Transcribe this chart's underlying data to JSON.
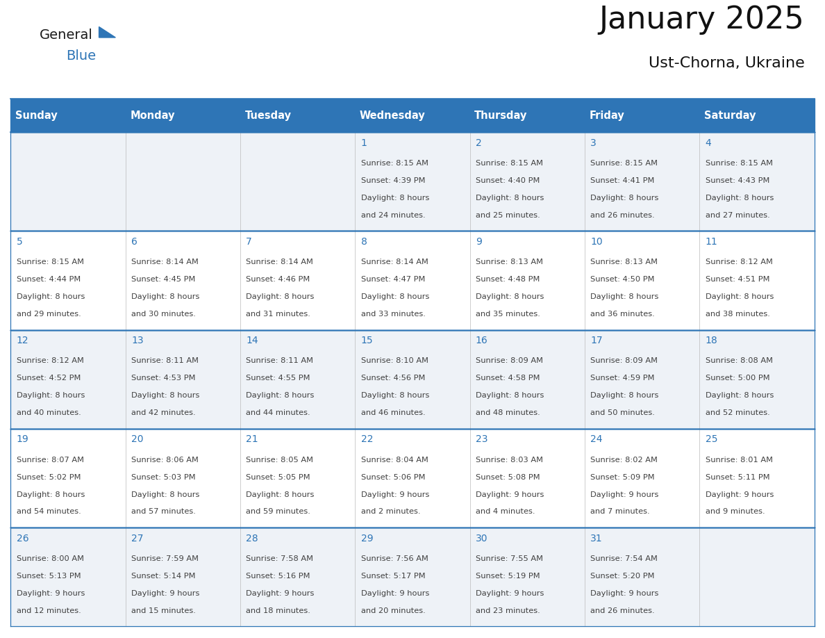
{
  "title": "January 2025",
  "subtitle": "Ust-Chorna, Ukraine",
  "header_bg_color": "#2E75B6",
  "header_text_color": "#FFFFFF",
  "row_bg_odd": "#EEF2F7",
  "row_bg_even": "#FFFFFF",
  "border_color": "#2E75B6",
  "text_color": "#404040",
  "day_num_color": "#2E75B6",
  "days_of_week": [
    "Sunday",
    "Monday",
    "Tuesday",
    "Wednesday",
    "Thursday",
    "Friday",
    "Saturday"
  ],
  "calendar": [
    [
      {
        "day": "",
        "sunrise": "",
        "sunset": "",
        "daylight": ""
      },
      {
        "day": "",
        "sunrise": "",
        "sunset": "",
        "daylight": ""
      },
      {
        "day": "",
        "sunrise": "",
        "sunset": "",
        "daylight": ""
      },
      {
        "day": "1",
        "sunrise": "8:15 AM",
        "sunset": "4:39 PM",
        "daylight": "8 hours and 24 minutes."
      },
      {
        "day": "2",
        "sunrise": "8:15 AM",
        "sunset": "4:40 PM",
        "daylight": "8 hours and 25 minutes."
      },
      {
        "day": "3",
        "sunrise": "8:15 AM",
        "sunset": "4:41 PM",
        "daylight": "8 hours and 26 minutes."
      },
      {
        "day": "4",
        "sunrise": "8:15 AM",
        "sunset": "4:43 PM",
        "daylight": "8 hours and 27 minutes."
      }
    ],
    [
      {
        "day": "5",
        "sunrise": "8:15 AM",
        "sunset": "4:44 PM",
        "daylight": "8 hours and 29 minutes."
      },
      {
        "day": "6",
        "sunrise": "8:14 AM",
        "sunset": "4:45 PM",
        "daylight": "8 hours and 30 minutes."
      },
      {
        "day": "7",
        "sunrise": "8:14 AM",
        "sunset": "4:46 PM",
        "daylight": "8 hours and 31 minutes."
      },
      {
        "day": "8",
        "sunrise": "8:14 AM",
        "sunset": "4:47 PM",
        "daylight": "8 hours and 33 minutes."
      },
      {
        "day": "9",
        "sunrise": "8:13 AM",
        "sunset": "4:48 PM",
        "daylight": "8 hours and 35 minutes."
      },
      {
        "day": "10",
        "sunrise": "8:13 AM",
        "sunset": "4:50 PM",
        "daylight": "8 hours and 36 minutes."
      },
      {
        "day": "11",
        "sunrise": "8:12 AM",
        "sunset": "4:51 PM",
        "daylight": "8 hours and 38 minutes."
      }
    ],
    [
      {
        "day": "12",
        "sunrise": "8:12 AM",
        "sunset": "4:52 PM",
        "daylight": "8 hours and 40 minutes."
      },
      {
        "day": "13",
        "sunrise": "8:11 AM",
        "sunset": "4:53 PM",
        "daylight": "8 hours and 42 minutes."
      },
      {
        "day": "14",
        "sunrise": "8:11 AM",
        "sunset": "4:55 PM",
        "daylight": "8 hours and 44 minutes."
      },
      {
        "day": "15",
        "sunrise": "8:10 AM",
        "sunset": "4:56 PM",
        "daylight": "8 hours and 46 minutes."
      },
      {
        "day": "16",
        "sunrise": "8:09 AM",
        "sunset": "4:58 PM",
        "daylight": "8 hours and 48 minutes."
      },
      {
        "day": "17",
        "sunrise": "8:09 AM",
        "sunset": "4:59 PM",
        "daylight": "8 hours and 50 minutes."
      },
      {
        "day": "18",
        "sunrise": "8:08 AM",
        "sunset": "5:00 PM",
        "daylight": "8 hours and 52 minutes."
      }
    ],
    [
      {
        "day": "19",
        "sunrise": "8:07 AM",
        "sunset": "5:02 PM",
        "daylight": "8 hours and 54 minutes."
      },
      {
        "day": "20",
        "sunrise": "8:06 AM",
        "sunset": "5:03 PM",
        "daylight": "8 hours and 57 minutes."
      },
      {
        "day": "21",
        "sunrise": "8:05 AM",
        "sunset": "5:05 PM",
        "daylight": "8 hours and 59 minutes."
      },
      {
        "day": "22",
        "sunrise": "8:04 AM",
        "sunset": "5:06 PM",
        "daylight": "9 hours and 2 minutes."
      },
      {
        "day": "23",
        "sunrise": "8:03 AM",
        "sunset": "5:08 PM",
        "daylight": "9 hours and 4 minutes."
      },
      {
        "day": "24",
        "sunrise": "8:02 AM",
        "sunset": "5:09 PM",
        "daylight": "9 hours and 7 minutes."
      },
      {
        "day": "25",
        "sunrise": "8:01 AM",
        "sunset": "5:11 PM",
        "daylight": "9 hours and 9 minutes."
      }
    ],
    [
      {
        "day": "26",
        "sunrise": "8:00 AM",
        "sunset": "5:13 PM",
        "daylight": "9 hours and 12 minutes."
      },
      {
        "day": "27",
        "sunrise": "7:59 AM",
        "sunset": "5:14 PM",
        "daylight": "9 hours and 15 minutes."
      },
      {
        "day": "28",
        "sunrise": "7:58 AM",
        "sunset": "5:16 PM",
        "daylight": "9 hours and 18 minutes."
      },
      {
        "day": "29",
        "sunrise": "7:56 AM",
        "sunset": "5:17 PM",
        "daylight": "9 hours and 20 minutes."
      },
      {
        "day": "30",
        "sunrise": "7:55 AM",
        "sunset": "5:19 PM",
        "daylight": "9 hours and 23 minutes."
      },
      {
        "day": "31",
        "sunrise": "7:54 AM",
        "sunset": "5:20 PM",
        "daylight": "9 hours and 26 minutes."
      },
      {
        "day": "",
        "sunrise": "",
        "sunset": "",
        "daylight": ""
      }
    ]
  ],
  "logo_general_color": "#1a1a1a",
  "logo_blue_color": "#2E75B6",
  "fig_width": 11.88,
  "fig_height": 9.18
}
